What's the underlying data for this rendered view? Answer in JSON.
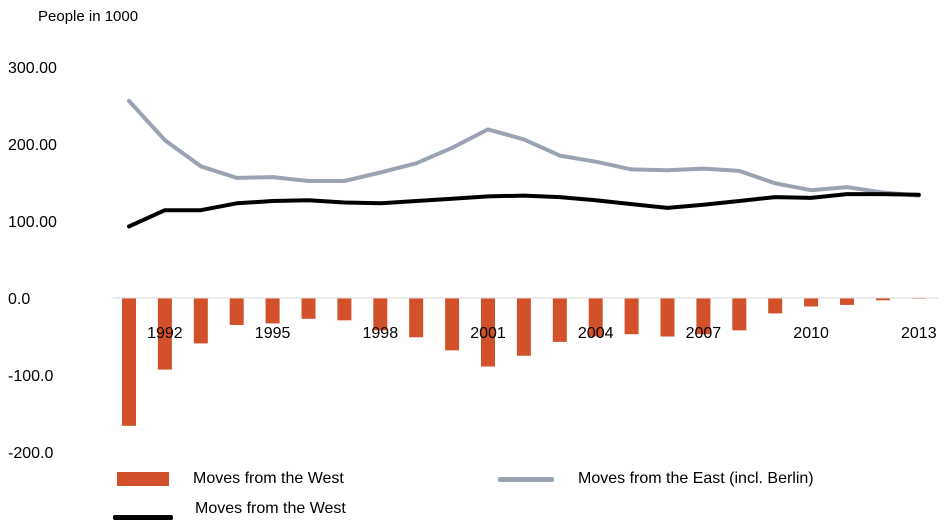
{
  "chart_data": {
    "type": "bar+line",
    "title": "",
    "ylabel": "People in 1000",
    "ylim": [
      -200,
      300
    ],
    "yticks": [
      {
        "value": 300,
        "label": "300.00"
      },
      {
        "value": 200,
        "label": "200.00"
      },
      {
        "value": 100,
        "label": "100.00"
      },
      {
        "value": 0,
        "label": "0.0"
      },
      {
        "value": -100,
        "label": "-100.0"
      },
      {
        "value": -200,
        "label": "-200.0"
      }
    ],
    "x": [
      1991,
      1992,
      1993,
      1994,
      1995,
      1996,
      1997,
      1998,
      1999,
      2000,
      2001,
      2002,
      2003,
      2004,
      2005,
      2006,
      2007,
      2008,
      2009,
      2010,
      2011,
      2012,
      2013
    ],
    "xtick_labels": [
      "1992",
      "1995",
      "1998",
      "2001",
      "2004",
      "2007",
      "2010",
      "2013"
    ],
    "grid": false,
    "legend_position": "bottom",
    "series": [
      {
        "name": "Moves from the West",
        "type": "bar",
        "color": "#d2502a",
        "values": [
          -166,
          -93,
          -59,
          -35,
          -33,
          -27,
          -29,
          -42,
          -51,
          -68,
          -89,
          -75,
          -57,
          -50,
          -47,
          -50,
          -47,
          -42,
          -20,
          -11,
          -9,
          -3,
          -1
        ]
      },
      {
        "name": "Moves from the East (incl. Berlin)",
        "type": "line",
        "color": "#9aa3b2",
        "values": [
          256,
          205,
          171,
          156,
          157,
          152,
          152,
          163,
          175,
          195,
          219,
          206,
          185,
          177,
          167,
          166,
          168,
          165,
          149,
          140,
          144,
          137,
          133
        ]
      },
      {
        "name": "Moves from the West",
        "type": "line",
        "color": "#000000",
        "values": [
          93,
          114,
          114,
          123,
          126,
          127,
          124,
          123,
          126,
          129,
          132,
          133,
          131,
          127,
          122,
          117,
          121,
          126,
          131,
          130,
          135,
          135,
          134
        ]
      }
    ]
  }
}
